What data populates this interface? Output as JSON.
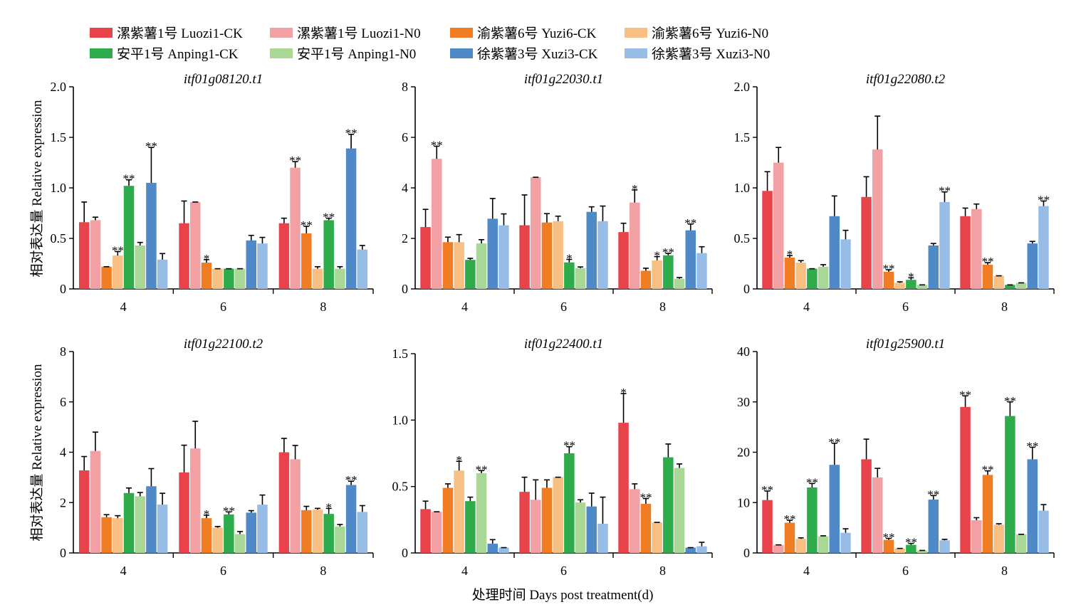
{
  "legend": [
    {
      "label": "漯紫薯1号 Luozi1-CK",
      "color": "#e8434a"
    },
    {
      "label": "漯紫薯1号 Luozi1-N0",
      "color": "#f2a0a4"
    },
    {
      "label": "渝紫薯6号 Yuzi6-CK",
      "color": "#f07d23"
    },
    {
      "label": "渝紫薯6号 Yuzi6-N0",
      "color": "#f8bf82"
    },
    {
      "label": "安平1号 Anping1-CK",
      "color": "#2eab4a"
    },
    {
      "label": "安平1号 Anping1-N0",
      "color": "#a9d796"
    },
    {
      "label": "徐紫薯3号 Xuzi3-CK",
      "color": "#4f89c7"
    },
    {
      "label": "徐紫薯3号 Xuzi3-N0",
      "color": "#97bde6"
    }
  ],
  "y_axis_label": "相对表达量 Relative expression",
  "x_axis_label": "处理时间 Days post treatment(d)",
  "chart_data": [
    {
      "type": "bar",
      "title": "itf01g08120.t1",
      "categories": [
        "4",
        "6",
        "8"
      ],
      "ylim": [
        0,
        2.0
      ],
      "yticks": [
        "0",
        "0.5",
        "1.0",
        "1.5",
        "2.0"
      ],
      "series": [
        {
          "name": "漯紫薯1号 Luozi1-CK",
          "values": [
            0.66,
            0.65,
            0.65
          ],
          "errors": [
            0.2,
            0.22,
            0.05
          ],
          "sig": [
            "",
            "",
            ""
          ]
        },
        {
          "name": "漯紫薯1号 Luozi1-N0",
          "values": [
            0.68,
            0.86,
            1.2
          ],
          "errors": [
            0.03,
            0.0,
            0.06
          ],
          "sig": [
            "",
            "",
            "**"
          ]
        },
        {
          "name": "渝紫薯6号 Yuzi6-CK",
          "values": [
            0.22,
            0.26,
            0.55
          ],
          "errors": [
            0.0,
            0.03,
            0.07
          ],
          "sig": [
            "",
            "*",
            "**"
          ]
        },
        {
          "name": "渝紫薯6号 Yuzi6-N0",
          "values": [
            0.33,
            0.2,
            0.2
          ],
          "errors": [
            0.04,
            0.0,
            0.02
          ],
          "sig": [
            "**",
            "",
            ""
          ]
        },
        {
          "name": "安平1号 Anping1-CK",
          "values": [
            1.02,
            0.2,
            0.68
          ],
          "errors": [
            0.06,
            0.0,
            0.02
          ],
          "sig": [
            "**",
            "",
            "**"
          ]
        },
        {
          "name": "安平1号 Anping1-N0",
          "values": [
            0.43,
            0.2,
            0.2
          ],
          "errors": [
            0.03,
            0.0,
            0.02
          ],
          "sig": [
            "",
            "",
            ""
          ]
        },
        {
          "name": "徐紫薯3号 Xuzi3-CK",
          "values": [
            1.05,
            0.48,
            1.39
          ],
          "errors": [
            0.35,
            0.05,
            0.14
          ],
          "sig": [
            "**",
            "",
            "**"
          ]
        },
        {
          "name": "徐紫薯3号 Xuzi3-N0",
          "values": [
            0.29,
            0.45,
            0.39
          ],
          "errors": [
            0.06,
            0.06,
            0.04
          ],
          "sig": [
            "",
            "",
            ""
          ]
        }
      ]
    },
    {
      "type": "bar",
      "title": "itf01g22030.t1",
      "categories": [
        "4",
        "6",
        "8"
      ],
      "ylim": [
        0,
        8
      ],
      "yticks": [
        "0",
        "2",
        "4",
        "6",
        "8"
      ],
      "series": [
        {
          "name": "漯紫薯1号 Luozi1-CK",
          "values": [
            2.45,
            2.52,
            2.25
          ],
          "errors": [
            0.7,
            1.2,
            0.35
          ],
          "sig": [
            "",
            "",
            ""
          ]
        },
        {
          "name": "漯紫薯1号 Luozi1-N0",
          "values": [
            5.15,
            4.42,
            3.42
          ],
          "errors": [
            0.5,
            0.0,
            0.5
          ],
          "sig": [
            "**",
            "",
            "*"
          ]
        },
        {
          "name": "渝紫薯6号 Yuzi6-CK",
          "values": [
            1.85,
            2.63,
            0.72
          ],
          "errors": [
            0.2,
            0.35,
            0.1
          ],
          "sig": [
            "",
            "",
            ""
          ]
        },
        {
          "name": "渝紫薯6号 Yuzi6-N0",
          "values": [
            1.85,
            2.68,
            1.13
          ],
          "errors": [
            0.3,
            0.2,
            0.15
          ],
          "sig": [
            "",
            "",
            "*"
          ]
        },
        {
          "name": "安平1号 Anping1-CK",
          "values": [
            1.15,
            1.05,
            1.33
          ],
          "errors": [
            0.06,
            0.12,
            0.08
          ],
          "sig": [
            "",
            "*",
            "**"
          ]
        },
        {
          "name": "安平1号 Anping1-N0",
          "values": [
            1.8,
            0.82,
            0.4
          ],
          "errors": [
            0.15,
            0.05,
            0.05
          ],
          "sig": [
            "",
            "",
            ""
          ]
        },
        {
          "name": "徐紫薯3号 Xuzi3-CK",
          "values": [
            2.78,
            3.05,
            2.32
          ],
          "errors": [
            0.8,
            0.2,
            0.25
          ],
          "sig": [
            "",
            "",
            "**"
          ]
        },
        {
          "name": "徐紫薯3号 Xuzi3-N0",
          "values": [
            2.52,
            2.68,
            1.42
          ],
          "errors": [
            0.45,
            0.6,
            0.25
          ],
          "sig": [
            "",
            "",
            ""
          ]
        }
      ]
    },
    {
      "type": "bar",
      "title": "itf01g22080.t2",
      "categories": [
        "4",
        "6",
        "8"
      ],
      "ylim": [
        0,
        2.0
      ],
      "yticks": [
        "0",
        "0.5",
        "1.0",
        "1.5",
        "2.0"
      ],
      "series": [
        {
          "name": "漯紫薯1号 Luozi1-CK",
          "values": [
            0.97,
            0.91,
            0.72
          ],
          "errors": [
            0.19,
            0.2,
            0.08
          ],
          "sig": [
            "",
            "",
            ""
          ]
        },
        {
          "name": "漯紫薯1号 Luozi1-N0",
          "values": [
            1.25,
            1.38,
            0.79
          ],
          "errors": [
            0.15,
            0.33,
            0.05
          ],
          "sig": [
            "",
            "",
            ""
          ]
        },
        {
          "name": "渝紫薯6号 Yuzi6-CK",
          "values": [
            0.31,
            0.17,
            0.24
          ],
          "errors": [
            0.02,
            0.02,
            0.02
          ],
          "sig": [
            "*",
            "**",
            "**"
          ]
        },
        {
          "name": "渝紫薯6号 Yuzi6-N0",
          "values": [
            0.26,
            0.06,
            0.13
          ],
          "errors": [
            0.02,
            0.01,
            0.0
          ],
          "sig": [
            "",
            "",
            ""
          ]
        },
        {
          "name": "安平1号 Anping1-CK",
          "values": [
            0.2,
            0.09,
            0.04
          ],
          "errors": [
            0.0,
            0.02,
            0.0
          ],
          "sig": [
            "",
            "*",
            ""
          ]
        },
        {
          "name": "安平1号 Anping1-N0",
          "values": [
            0.22,
            0.04,
            0.06
          ],
          "errors": [
            0.02,
            0.0,
            0.0
          ],
          "sig": [
            "",
            "",
            ""
          ]
        },
        {
          "name": "徐紫薯3号 Xuzi3-CK",
          "values": [
            0.72,
            0.43,
            0.45
          ],
          "errors": [
            0.2,
            0.02,
            0.02
          ],
          "sig": [
            "",
            "",
            ""
          ]
        },
        {
          "name": "徐紫薯3号 Xuzi3-N0",
          "values": [
            0.49,
            0.86,
            0.82
          ],
          "errors": [
            0.09,
            0.1,
            0.05
          ],
          "sig": [
            "",
            "**",
            "**"
          ]
        }
      ]
    },
    {
      "type": "bar",
      "title": "itf01g22100.t2",
      "categories": [
        "4",
        "6",
        "8"
      ],
      "ylim": [
        0,
        8
      ],
      "yticks": [
        "0",
        "2",
        "4",
        "6",
        "8"
      ],
      "series": [
        {
          "name": "漯紫薯1号 Luozi1-CK",
          "values": [
            3.28,
            3.2,
            4.0
          ],
          "errors": [
            0.55,
            1.08,
            0.55
          ],
          "sig": [
            "",
            "",
            ""
          ]
        },
        {
          "name": "漯紫薯1号 Luozi1-N0",
          "values": [
            4.05,
            4.15,
            3.72
          ],
          "errors": [
            0.75,
            1.08,
            0.55
          ],
          "sig": [
            "",
            "",
            ""
          ]
        },
        {
          "name": "渝紫薯6号 Yuzi6-CK",
          "values": [
            1.42,
            1.38,
            1.7
          ],
          "errors": [
            0.1,
            0.12,
            0.15
          ],
          "sig": [
            "",
            "*",
            ""
          ]
        },
        {
          "name": "渝紫薯6号 Yuzi6-N0",
          "values": [
            1.38,
            1.0,
            1.72
          ],
          "errors": [
            0.1,
            0.05,
            0.05
          ],
          "sig": [
            "",
            "",
            ""
          ]
        },
        {
          "name": "安平1号 Anping1-CK",
          "values": [
            2.38,
            1.53,
            1.55
          ],
          "errors": [
            0.2,
            0.1,
            0.22
          ],
          "sig": [
            "",
            "**",
            "*"
          ]
        },
        {
          "name": "安平1号 Anping1-N0",
          "values": [
            2.25,
            0.75,
            1.05
          ],
          "errors": [
            0.15,
            0.1,
            0.08
          ],
          "sig": [
            "",
            "",
            ""
          ]
        },
        {
          "name": "徐紫薯3号 Xuzi3-CK",
          "values": [
            2.65,
            1.6,
            2.7
          ],
          "errors": [
            0.7,
            0.08,
            0.15
          ],
          "sig": [
            "",
            "",
            "**"
          ]
        },
        {
          "name": "徐紫薯3号 Xuzi3-N0",
          "values": [
            1.92,
            1.92,
            1.63
          ],
          "errors": [
            0.45,
            0.38,
            0.25
          ],
          "sig": [
            "",
            "",
            ""
          ]
        }
      ]
    },
    {
      "type": "bar",
      "title": "itf01g22400.t1",
      "categories": [
        "4",
        "6",
        "8"
      ],
      "ylim": [
        0,
        1.5
      ],
      "yticks": [
        "0",
        "0.5",
        "1.0",
        "1.5"
      ],
      "series": [
        {
          "name": "漯紫薯1号 Luozi1-CK",
          "values": [
            0.33,
            0.46,
            0.98
          ],
          "errors": [
            0.06,
            0.11,
            0.22
          ],
          "sig": [
            "",
            "",
            "*"
          ]
        },
        {
          "name": "漯紫薯1号 Luozi1-N0",
          "values": [
            0.31,
            0.4,
            0.48
          ],
          "errors": [
            0.0,
            0.15,
            0.04
          ],
          "sig": [
            "",
            "",
            ""
          ]
        },
        {
          "name": "渝紫薯6号 Yuzi6-CK",
          "values": [
            0.49,
            0.49,
            0.37
          ],
          "errors": [
            0.03,
            0.06,
            0.04
          ],
          "sig": [
            "",
            "",
            "**"
          ]
        },
        {
          "name": "渝紫薯6号 Yuzi6-N0",
          "values": [
            0.62,
            0.57,
            0.23
          ],
          "errors": [
            0.07,
            0.0,
            0.0
          ],
          "sig": [
            "*",
            "",
            ""
          ]
        },
        {
          "name": "安平1号 Anping1-CK",
          "values": [
            0.39,
            0.75,
            0.72
          ],
          "errors": [
            0.03,
            0.05,
            0.1
          ],
          "sig": [
            "",
            "**",
            ""
          ]
        },
        {
          "name": "安平1号 Anping1-N0",
          "values": [
            0.6,
            0.38,
            0.64
          ],
          "errors": [
            0.02,
            0.02,
            0.03
          ],
          "sig": [
            "**",
            "",
            ""
          ]
        },
        {
          "name": "徐紫薯3号 Xuzi3-CK",
          "values": [
            0.07,
            0.35,
            0.04
          ],
          "errors": [
            0.03,
            0.1,
            0.0
          ],
          "sig": [
            "",
            "",
            ""
          ]
        },
        {
          "name": "徐紫薯3号 Xuzi3-N0",
          "values": [
            0.04,
            0.22,
            0.05
          ],
          "errors": [
            0.0,
            0.2,
            0.03
          ],
          "sig": [
            "",
            "",
            ""
          ]
        }
      ]
    },
    {
      "type": "bar",
      "title": "itf01g25900.t1",
      "categories": [
        "4",
        "6",
        "8"
      ],
      "ylim": [
        0,
        40
      ],
      "yticks": [
        "0",
        "10",
        "20",
        "30",
        "40"
      ],
      "series": [
        {
          "name": "漯紫薯1号 Luozi1-CK",
          "values": [
            10.5,
            18.6,
            29.0
          ],
          "errors": [
            1.8,
            4.0,
            2.2
          ],
          "sig": [
            "**",
            "",
            "**"
          ]
        },
        {
          "name": "漯紫薯1号 Luozi1-N0",
          "values": [
            1.6,
            15.0,
            6.5
          ],
          "errors": [
            0.0,
            1.8,
            0.5
          ],
          "sig": [
            "",
            "",
            ""
          ]
        },
        {
          "name": "渝紫薯6号 Yuzi6-CK",
          "values": [
            6.0,
            2.6,
            15.5
          ],
          "errors": [
            0.5,
            0.3,
            0.8
          ],
          "sig": [
            "**",
            "**",
            "**"
          ]
        },
        {
          "name": "渝紫薯6号 Yuzi6-N0",
          "values": [
            2.8,
            0.9,
            5.6
          ],
          "errors": [
            0.2,
            0.0,
            0.2
          ],
          "sig": [
            "",
            "",
            ""
          ]
        },
        {
          "name": "安平1号 Anping1-CK",
          "values": [
            13.0,
            1.6,
            27.2
          ],
          "errors": [
            0.8,
            0.3,
            2.8
          ],
          "sig": [
            "**",
            "**",
            "**"
          ]
        },
        {
          "name": "安平1号 Anping1-N0",
          "values": [
            3.3,
            0.5,
            3.7
          ],
          "errors": [
            0.1,
            0.0,
            0.0
          ],
          "sig": [
            "",
            "",
            ""
          ]
        },
        {
          "name": "徐紫薯3号 Xuzi3-CK",
          "values": [
            17.5,
            10.6,
            18.6
          ],
          "errors": [
            4.3,
            0.8,
            2.4
          ],
          "sig": [
            "**",
            "**",
            "**"
          ]
        },
        {
          "name": "徐紫薯3号 Xuzi3-N0",
          "values": [
            4.0,
            2.5,
            8.4
          ],
          "errors": [
            0.8,
            0.2,
            1.2
          ],
          "sig": [
            "",
            "",
            ""
          ]
        }
      ]
    }
  ]
}
